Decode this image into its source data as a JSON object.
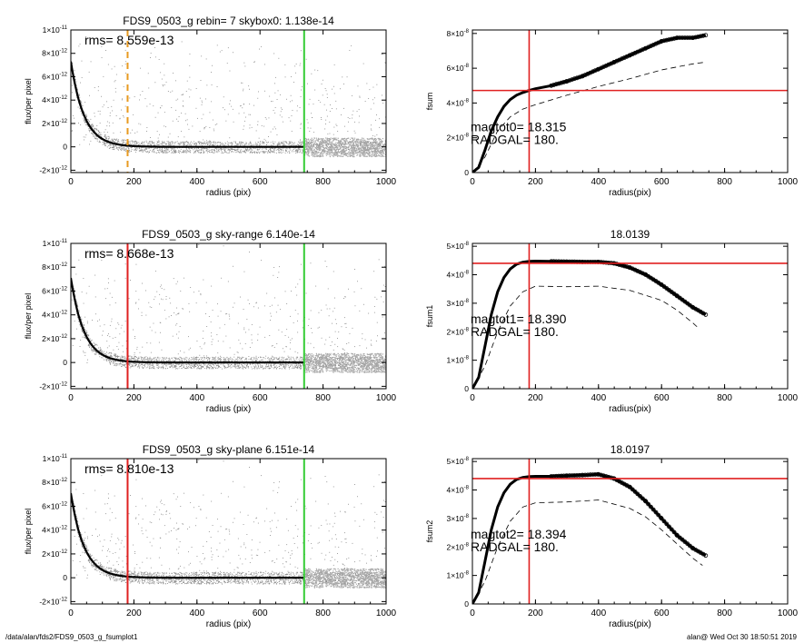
{
  "footer": {
    "path": "/data/alan/fds2/FDS9_0503_g_fsumplot1",
    "stamp": "alan@  Wed Oct 30 18:50:51 2019"
  },
  "colors": {
    "axis": "#000000",
    "scatter": "#8a8a8a",
    "profile": "#000000",
    "red_marker": "#e02020",
    "green_marker": "#33cc33",
    "orange_marker": "#e89a20"
  },
  "chart_data": [
    {
      "type": "scatter",
      "title": "FDS9_0503_g rebin= 7    skybox0:  1.138e-14",
      "annotation": "rms= 8.559e-13",
      "xlabel": "radius (pix)",
      "ylabel": "flux/per pixel",
      "xlim": [
        0,
        1000
      ],
      "ylim": [
        -2.2e-12,
        1e-11
      ],
      "xticks": [
        "0",
        "200",
        "400",
        "600",
        "800",
        "1000"
      ],
      "yticks": [
        {
          "mantissa": "1×10",
          "exp": "-11",
          "value": 1e-11
        },
        {
          "mantissa": "8×10",
          "exp": "-12",
          "value": 8e-12
        },
        {
          "mantissa": "6×10",
          "exp": "-12",
          "value": 6e-12
        },
        {
          "mantissa": "4×10",
          "exp": "-12",
          "value": 4e-12
        },
        {
          "mantissa": "2×10",
          "exp": "-12",
          "value": 2e-12
        },
        {
          "mantissa": "0",
          "exp": "",
          "value": 0
        },
        {
          "mantissa": "-2×10",
          "exp": "-12",
          "value": -2e-12
        }
      ],
      "profile": {
        "amplitude": 7.3e-12,
        "scale_radius": 42,
        "end_radius": 740
      },
      "vlines": [
        {
          "x": 180,
          "color": "#e89a20",
          "style": "dashed"
        },
        {
          "x": 740,
          "color": "#33cc33",
          "style": "solid"
        }
      ],
      "grid": false
    },
    {
      "type": "line",
      "title": "",
      "xlabel": "radius(pix)",
      "ylabel": "fsum",
      "xlim": [
        0,
        1000
      ],
      "ylim": [
        0,
        8.2e-08
      ],
      "xticks": [
        "0",
        "200",
        "400",
        "600",
        "800",
        "1000"
      ],
      "yticks": [
        {
          "mantissa": "8×10",
          "exp": "-8",
          "value": 8e-08
        },
        {
          "mantissa": "6×10",
          "exp": "-8",
          "value": 6e-08
        },
        {
          "mantissa": "4×10",
          "exp": "-8",
          "value": 4e-08
        },
        {
          "mantissa": "2×10",
          "exp": "-8",
          "value": 2e-08
        },
        {
          "mantissa": "0",
          "exp": "",
          "value": 0
        }
      ],
      "annotations": [
        "magtot0=  18.315",
        "RADGAL=    180."
      ],
      "series": [
        {
          "style": "circles",
          "x": [
            0,
            20,
            40,
            60,
            80,
            100,
            120,
            140,
            160,
            180,
            200,
            250,
            300,
            350,
            400,
            450,
            500,
            550,
            600,
            650,
            700,
            740
          ],
          "y": [
            0,
            3e-09,
            1.3e-08,
            2.4e-08,
            3.2e-08,
            3.8e-08,
            4.2e-08,
            4.45e-08,
            4.6e-08,
            4.72e-08,
            4.82e-08,
            5e-08,
            5.25e-08,
            5.55e-08,
            5.95e-08,
            6.35e-08,
            6.75e-08,
            7.15e-08,
            7.55e-08,
            7.75e-08,
            7.75e-08,
            7.9e-08
          ]
        },
        {
          "style": "dashed",
          "x": [
            0,
            40,
            80,
            120,
            160,
            200,
            300,
            400,
            500,
            600,
            700,
            740
          ],
          "y": [
            0,
            9e-09,
            2.4e-08,
            3.2e-08,
            3.65e-08,
            3.9e-08,
            4.45e-08,
            4.95e-08,
            5.4e-08,
            5.9e-08,
            6.25e-08,
            6.35e-08
          ]
        }
      ],
      "vline": 180,
      "hline": 4.72e-08,
      "grid": false
    },
    {
      "type": "scatter",
      "title": "FDS9_0503_g sky-range  6.140e-14",
      "annotation": "rms= 8.668e-13",
      "xlabel": "radius (pix)",
      "ylabel": "flux/per pixel",
      "xlim": [
        0,
        1000
      ],
      "ylim": [
        -2.2e-12,
        1e-11
      ],
      "xticks": [
        "0",
        "200",
        "400",
        "600",
        "800",
        "1000"
      ],
      "yticks": [
        {
          "mantissa": "1×10",
          "exp": "-11",
          "value": 1e-11
        },
        {
          "mantissa": "8×10",
          "exp": "-12",
          "value": 8e-12
        },
        {
          "mantissa": "6×10",
          "exp": "-12",
          "value": 6e-12
        },
        {
          "mantissa": "4×10",
          "exp": "-12",
          "value": 4e-12
        },
        {
          "mantissa": "2×10",
          "exp": "-12",
          "value": 2e-12
        },
        {
          "mantissa": "0",
          "exp": "",
          "value": 0
        },
        {
          "mantissa": "-2×10",
          "exp": "-12",
          "value": -2e-12
        }
      ],
      "profile": {
        "amplitude": 7.1e-12,
        "scale_radius": 42,
        "end_radius": 740
      },
      "vlines": [
        {
          "x": 180,
          "color": "#e02020",
          "style": "solid"
        },
        {
          "x": 740,
          "color": "#33cc33",
          "style": "solid"
        }
      ],
      "grid": false
    },
    {
      "type": "line",
      "title": "18.0139",
      "xlabel": "radius(pix)",
      "ylabel": "fsum1",
      "xlim": [
        0,
        1000
      ],
      "ylim": [
        0,
        5.1e-08
      ],
      "xticks": [
        "0",
        "200",
        "400",
        "600",
        "800",
        "1000"
      ],
      "yticks": [
        {
          "mantissa": "5×10",
          "exp": "-8",
          "value": 5e-08
        },
        {
          "mantissa": "4×10",
          "exp": "-8",
          "value": 4e-08
        },
        {
          "mantissa": "3×10",
          "exp": "-8",
          "value": 3e-08
        },
        {
          "mantissa": "2×10",
          "exp": "-8",
          "value": 2e-08
        },
        {
          "mantissa": "1×10",
          "exp": "-8",
          "value": 1e-08
        },
        {
          "mantissa": "0",
          "exp": "",
          "value": 0
        }
      ],
      "annotations": [
        "magtot1=  18.390",
        "RADGAL=    180."
      ],
      "series": [
        {
          "style": "circles",
          "x": [
            0,
            20,
            40,
            60,
            80,
            100,
            120,
            140,
            160,
            180,
            200,
            250,
            300,
            350,
            400,
            450,
            500,
            550,
            600,
            650,
            700,
            740
          ],
          "y": [
            0,
            4e-09,
            1.5e-08,
            2.6e-08,
            3.4e-08,
            3.9e-08,
            4.2e-08,
            4.37e-08,
            4.44e-08,
            4.47e-08,
            4.48e-08,
            4.47e-08,
            4.46e-08,
            4.45e-08,
            4.45e-08,
            4.4e-08,
            4.25e-08,
            4e-08,
            3.65e-08,
            3.25e-08,
            2.85e-08,
            2.6e-08
          ]
        },
        {
          "style": "dashed",
          "x": [
            0,
            40,
            80,
            120,
            160,
            200,
            300,
            400,
            500,
            600,
            650,
            700,
            720
          ],
          "y": [
            0,
            8e-09,
            2e-08,
            2.9e-08,
            3.4e-08,
            3.6e-08,
            3.58e-08,
            3.6e-08,
            3.45e-08,
            3.1e-08,
            2.75e-08,
            2.3e-08,
            2.1e-08
          ]
        }
      ],
      "vline": 180,
      "hline": 4.4e-08,
      "grid": false
    },
    {
      "type": "scatter",
      "title": "FDS9_0503_g sky-plane  6.151e-14",
      "annotation": "rms= 8.810e-13",
      "xlabel": "radius (pix)",
      "ylabel": "flux/per pixel",
      "xlim": [
        0,
        1000
      ],
      "ylim": [
        -2.2e-12,
        1e-11
      ],
      "xticks": [
        "0",
        "200",
        "400",
        "600",
        "800",
        "1000"
      ],
      "yticks": [
        {
          "mantissa": "1×10",
          "exp": "-11",
          "value": 1e-11
        },
        {
          "mantissa": "8×10",
          "exp": "-12",
          "value": 8e-12
        },
        {
          "mantissa": "6×10",
          "exp": "-12",
          "value": 6e-12
        },
        {
          "mantissa": "4×10",
          "exp": "-12",
          "value": 4e-12
        },
        {
          "mantissa": "2×10",
          "exp": "-12",
          "value": 2e-12
        },
        {
          "mantissa": "0",
          "exp": "",
          "value": 0
        },
        {
          "mantissa": "-2×10",
          "exp": "-12",
          "value": -2e-12
        }
      ],
      "profile": {
        "amplitude": 7.1e-12,
        "scale_radius": 42,
        "end_radius": 740
      },
      "vlines": [
        {
          "x": 180,
          "color": "#e02020",
          "style": "solid"
        },
        {
          "x": 740,
          "color": "#33cc33",
          "style": "solid"
        }
      ],
      "grid": false
    },
    {
      "type": "line",
      "title": "18.0197",
      "xlabel": "radius(pix)",
      "ylabel": "fsum2",
      "xlim": [
        0,
        1000
      ],
      "ylim": [
        0,
        5.1e-08
      ],
      "xticks": [
        "0",
        "200",
        "400",
        "600",
        "800",
        "1000"
      ],
      "yticks": [
        {
          "mantissa": "5×10",
          "exp": "-8",
          "value": 5e-08
        },
        {
          "mantissa": "4×10",
          "exp": "-8",
          "value": 4e-08
        },
        {
          "mantissa": "3×10",
          "exp": "-8",
          "value": 3e-08
        },
        {
          "mantissa": "2×10",
          "exp": "-8",
          "value": 2e-08
        },
        {
          "mantissa": "1×10",
          "exp": "-8",
          "value": 1e-08
        },
        {
          "mantissa": "0",
          "exp": "",
          "value": 0
        }
      ],
      "annotations": [
        "magtot2=  18.394",
        "RADGAL=    180."
      ],
      "series": [
        {
          "style": "circles",
          "x": [
            0,
            20,
            40,
            60,
            80,
            100,
            120,
            140,
            160,
            180,
            200,
            250,
            300,
            350,
            400,
            450,
            500,
            550,
            600,
            650,
            700,
            740
          ],
          "y": [
            0,
            4e-09,
            1.5e-08,
            2.6e-08,
            3.4e-08,
            3.9e-08,
            4.2e-08,
            4.37e-08,
            4.44e-08,
            4.47e-08,
            4.48e-08,
            4.48e-08,
            4.5e-08,
            4.52e-08,
            4.55e-08,
            4.4e-08,
            4.1e-08,
            3.6e-08,
            3e-08,
            2.4e-08,
            1.95e-08,
            1.7e-08
          ]
        },
        {
          "style": "dashed",
          "x": [
            0,
            40,
            80,
            120,
            160,
            200,
            300,
            400,
            500,
            550,
            600,
            650,
            700,
            730
          ],
          "y": [
            0,
            8e-09,
            2e-08,
            2.9e-08,
            3.4e-08,
            3.55e-08,
            3.58e-08,
            3.65e-08,
            3.35e-08,
            3.05e-08,
            2.6e-08,
            2.1e-08,
            1.6e-08,
            1.35e-08
          ]
        }
      ],
      "vline": 180,
      "hline": 4.4e-08,
      "grid": false
    }
  ]
}
